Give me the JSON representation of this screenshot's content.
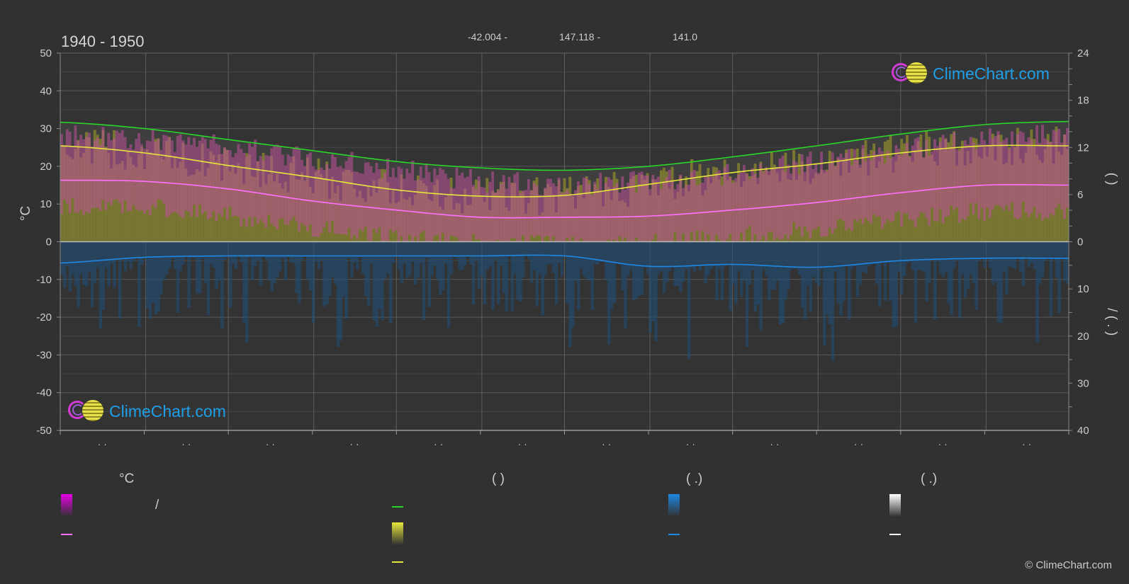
{
  "header": {
    "period": "1940 - 1950",
    "latitude": "-42.004 -",
    "longitude": "147.118 -",
    "elevation": "141.0"
  },
  "chart_data": {
    "type": "area",
    "title": "1940 - 1950",
    "x_ticks": [
      "· ·",
      "· ·",
      "· ·",
      "· ·",
      "· ·",
      "· ·",
      "· ·",
      "· ·",
      "· ·",
      "· ·",
      "· ·",
      "· ·"
    ],
    "y_left": {
      "label": "°C",
      "ylim": [
        -50,
        50
      ],
      "ticks": [
        50,
        40,
        30,
        20,
        10,
        0,
        -10,
        -20,
        -30,
        -40,
        -50
      ]
    },
    "y_right_top": {
      "label": "(   )",
      "ylim": [
        0,
        24
      ],
      "ticks": [
        24,
        18,
        12,
        6,
        0
      ]
    },
    "y_right_bottom": {
      "label": "/   ( . )",
      "ylim": [
        0,
        40
      ],
      "ticks": [
        0,
        10,
        20,
        30,
        40
      ]
    },
    "grid": true,
    "months_x": [
      0,
      1,
      2,
      3,
      4,
      5,
      6,
      7,
      8,
      9,
      10,
      11,
      12
    ],
    "series": [
      {
        "name": "daylight",
        "color": "#29d629",
        "axis": "hours",
        "values": [
          15.2,
          14.4,
          13.0,
          11.6,
          10.2,
          9.4,
          9.1,
          9.6,
          10.8,
          12.2,
          13.7,
          14.9,
          15.3
        ]
      },
      {
        "name": "sunshine",
        "color": "#e6e63c",
        "axis": "hours",
        "values": [
          12.2,
          11.3,
          9.7,
          8.2,
          6.6,
          5.8,
          5.9,
          7.3,
          8.8,
          9.9,
          11.3,
          12.2,
          12.2
        ]
      },
      {
        "name": "mean_temp",
        "color": "#ff70ff",
        "axis": "temp",
        "values": [
          16.3,
          16.0,
          14.0,
          10.8,
          8.4,
          6.5,
          6.5,
          6.8,
          8.4,
          10.4,
          13.0,
          15.0,
          15.0
        ]
      },
      {
        "name": "precipitation",
        "color": "#1e88e5",
        "axis": "precip",
        "values": [
          4.5,
          3.3,
          3.0,
          3.0,
          3.0,
          3.0,
          3.0,
          5.2,
          4.8,
          5.4,
          4.0,
          3.5,
          3.5
        ]
      },
      {
        "name": "max_temp_band",
        "color": "#ff3cff",
        "axis": "temp",
        "values": [
          27,
          26,
          24,
          21,
          18,
          15,
          14,
          15,
          17,
          20,
          23,
          26,
          27
        ]
      }
    ]
  },
  "legend": {
    "col1": {
      "head": "°C",
      "item1": "/",
      "color_grad": "#e600e6",
      "color_line": "#ff70ff"
    },
    "col2": {
      "head": "(           )",
      "color_line1": "#29d629",
      "color_grad": "#e6e63c",
      "color_line2": "#e6e63c"
    },
    "col3": {
      "head": "(   .)",
      "color_grad": "#1e88e5",
      "color_line": "#1e88e5"
    },
    "col4": {
      "head": "(   .)",
      "color_grad": "#ffffff",
      "color_line": "#ffffff"
    }
  },
  "logo": {
    "text": "ClimeChart.com"
  },
  "copyright": "© ClimeChart.com"
}
